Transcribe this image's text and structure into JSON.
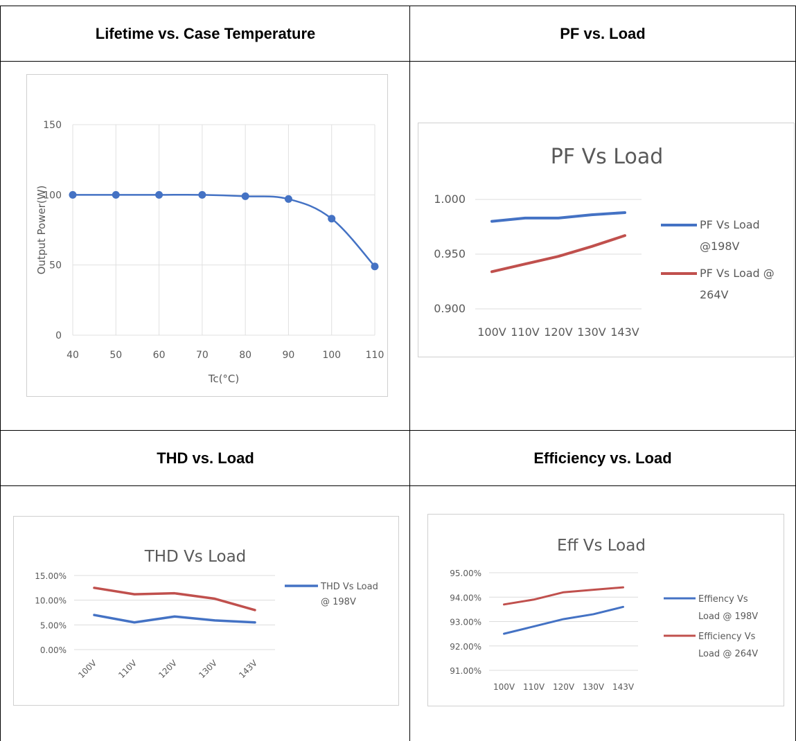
{
  "headers": {
    "lifetime": "Lifetime vs. Case Temperature",
    "pf": "PF vs. Load",
    "thd": "THD vs.  Load",
    "eff": "Efficiency vs.  Load"
  },
  "chart_data": [
    {
      "id": "lifetime",
      "type": "line",
      "title": "",
      "xlabel": "Tc(°C)",
      "ylabel": "Output Power(W)",
      "x": [
        40,
        50,
        60,
        70,
        80,
        90,
        100,
        110
      ],
      "x_tick_labels": [
        "40",
        "50",
        "60",
        "70",
        "80",
        "90",
        "100",
        "110"
      ],
      "y_tick_labels": [
        "0",
        "50",
        "100",
        "150"
      ],
      "ylim": [
        0,
        150
      ],
      "series": [
        {
          "values": [
            100,
            100,
            100,
            100,
            99,
            97,
            83,
            49
          ],
          "color": "#4472c4"
        }
      ],
      "grid": true,
      "markers": true
    },
    {
      "id": "pf",
      "type": "line",
      "title": "PF Vs Load",
      "categories": [
        "100V",
        "110V",
        "120V",
        "130V",
        "143V"
      ],
      "y_tick_labels": [
        "0.900",
        "0.950",
        "1.000"
      ],
      "ylim": [
        0.9,
        1.0
      ],
      "series": [
        {
          "name": "PF Vs Load @198V",
          "legend_lines": [
            "PF Vs Load",
            "@198V"
          ],
          "values": [
            0.98,
            0.983,
            0.983,
            0.986,
            0.988
          ],
          "color": "#4472c4"
        },
        {
          "name": "PF Vs Load @ 264V",
          "legend_lines": [
            "PF Vs Load @",
            "264V"
          ],
          "values": [
            0.934,
            0.941,
            0.948,
            0.957,
            0.967
          ],
          "color": "#c0504d"
        }
      ],
      "legend": "right",
      "grid": true
    },
    {
      "id": "thd",
      "type": "line",
      "title": "THD Vs Load",
      "categories": [
        "100V",
        "110V",
        "120V",
        "130V",
        "143V"
      ],
      "y_tick_labels": [
        "0.00%",
        "5.00%",
        "10.00%",
        "15.00%"
      ],
      "ylim": [
        0,
        15
      ],
      "series": [
        {
          "name": "THD Vs Load @ 198V",
          "legend_lines": [
            "THD Vs Load",
            "@ 198V"
          ],
          "values": [
            7.0,
            5.5,
            6.7,
            5.9,
            5.5
          ],
          "color": "#4472c4"
        },
        {
          "values": [
            12.5,
            11.2,
            11.4,
            10.3,
            8.0
          ],
          "color": "#c0504d"
        }
      ],
      "legend": "right",
      "grid": true
    },
    {
      "id": "eff",
      "type": "line",
      "title": "Eff Vs Load",
      "categories": [
        "100V",
        "110V",
        "120V",
        "130V",
        "143V"
      ],
      "y_tick_labels": [
        "91.00%",
        "92.00%",
        "93.00%",
        "94.00%",
        "95.00%"
      ],
      "ylim": [
        91,
        95
      ],
      "series": [
        {
          "name": "Effiency Vs Load @ 198V",
          "legend_lines": [
            "Effiency Vs",
            "Load @ 198V"
          ],
          "values": [
            92.5,
            92.8,
            93.1,
            93.3,
            93.6
          ],
          "color": "#4472c4"
        },
        {
          "name": "Efficiency Vs Load @ 264V",
          "legend_lines": [
            "Efficiency Vs",
            "Load @ 264V"
          ],
          "values": [
            93.7,
            93.9,
            94.2,
            94.3,
            94.4
          ],
          "color": "#c0504d"
        }
      ],
      "legend": "right",
      "grid": true
    }
  ]
}
